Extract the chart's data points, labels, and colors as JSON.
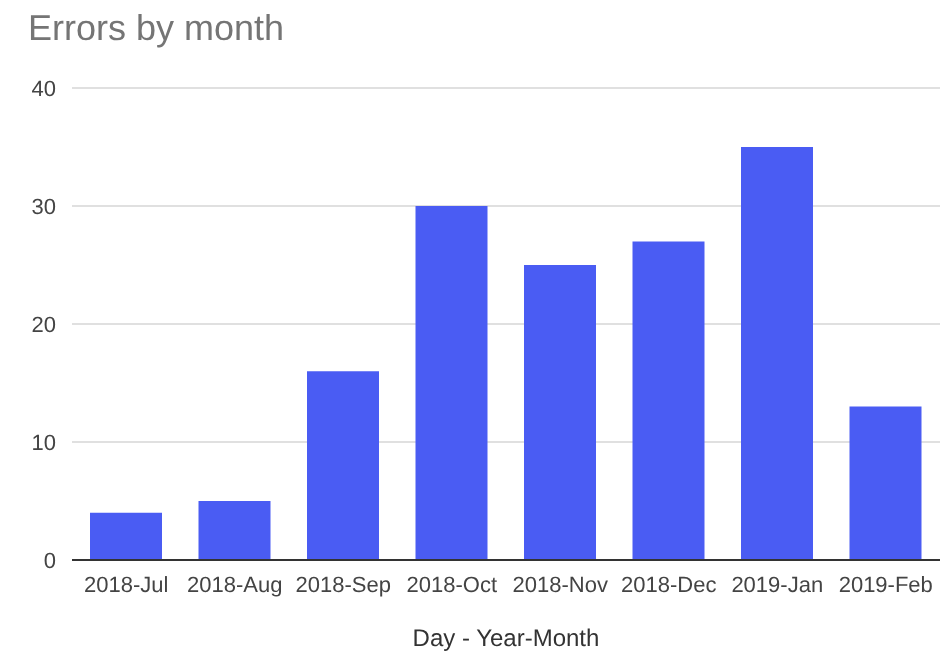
{
  "chart_data": {
    "type": "bar",
    "title": "Errors by month",
    "xlabel": "Day - Year-Month",
    "categories": [
      "2018-Jul",
      "2018-Aug",
      "2018-Sep",
      "2018-Oct",
      "2018-Nov",
      "2018-Dec",
      "2019-Jan",
      "2019-Feb"
    ],
    "values": [
      4,
      5,
      16,
      30,
      25,
      27,
      35,
      13
    ],
    "color": "#4a5cf3",
    "ylim": [
      0,
      40
    ],
    "yticks": [
      0,
      10,
      20,
      30,
      40
    ],
    "grid": "y"
  }
}
